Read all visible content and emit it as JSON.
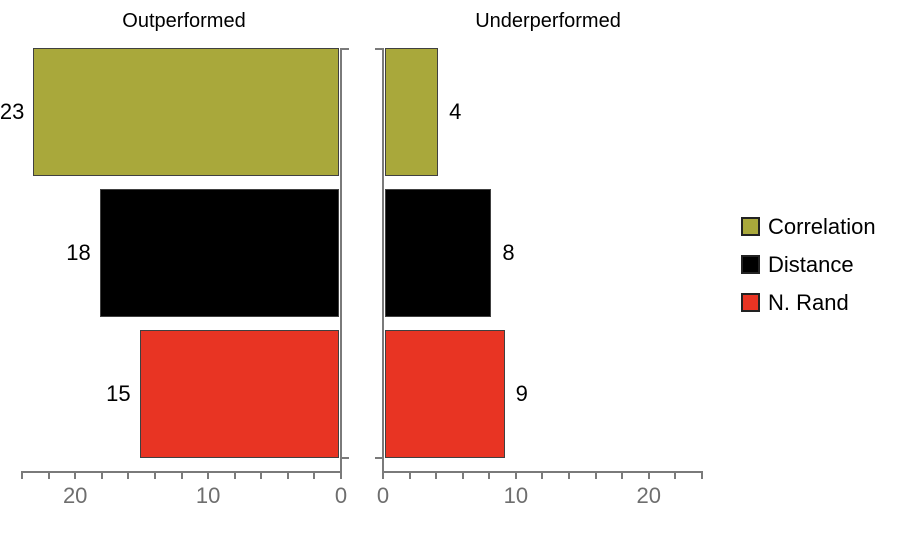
{
  "chart_data": {
    "type": "bar",
    "orientation": "horizontal",
    "categories": [
      "Correlation",
      "Distance",
      "N. Rand"
    ],
    "category_colors": [
      "#A9A83B",
      "#000000",
      "#E83423"
    ],
    "panels": [
      {
        "title": "Outperformed",
        "direction": "left",
        "values": [
          23,
          18,
          15
        ]
      },
      {
        "title": "Underperformed",
        "direction": "right",
        "values": [
          4,
          8,
          9
        ]
      }
    ],
    "x_axis": {
      "min": 0,
      "max": 24,
      "minor_tick_step": 2,
      "labeled_ticks": [
        0,
        10,
        20
      ],
      "tick_label_color": "#6e6e6e",
      "axis_color": "#7a7a7a"
    },
    "value_labels_shown": true,
    "legend": {
      "position": "right"
    }
  },
  "colors": {
    "background": "#ffffff",
    "bar_border": "#404040",
    "axis": "#7a7a7a",
    "tick_label": "#6e6e6e",
    "text": "#000000"
  }
}
